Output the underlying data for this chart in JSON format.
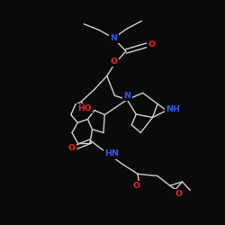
{
  "background_color": "#0a0a0a",
  "bond_color": "#c8c8c8",
  "N_color": "#3355ee",
  "O_color": "#ee2222",
  "figsize": [
    2.5,
    2.5
  ],
  "dpi": 100,
  "xlim": [
    0,
    10
  ],
  "ylim": [
    0,
    10
  ]
}
